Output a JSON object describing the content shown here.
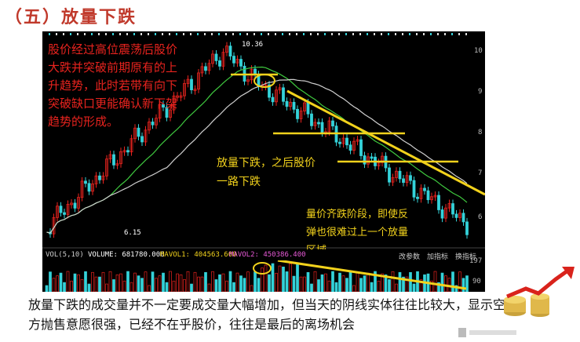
{
  "title": "（五）放量下跌",
  "chart": {
    "high_label": "10.36",
    "low_label": "6.15",
    "annotation_red": "股价经过高位震荡后股价大跌并突破前期原有的上升趋势，此时若带有向下突破缺口更能确认新下架趋势的形成。",
    "annotation_yellow_1": "放量下跌，之后股价一路下跌",
    "annotation_yellow_2": "量价齐跌阶段，即使反弹也很难过上一个放量区域",
    "price_axis": [
      "10",
      "9",
      "8",
      "7",
      "6"
    ],
    "volume_labels": {
      "vol": "VOL(5,10)",
      "volume": "VOLUME: 681780.000",
      "mavol1": "MAVOL1: 404563.600",
      "mavol2": "MAVOL2: 450386.400"
    },
    "volume_buttons": [
      "改参数",
      "加指标",
      "换指标"
    ],
    "volume_axis": [
      "197",
      "90"
    ]
  },
  "caption": "放量下跌的成交量并不一定要成交量大幅增加，但当天的阴线实体往往比较大，显示空方抛售意愿很强，已经不在乎股价，往往是最后的离场机会",
  "colors": {
    "title": "#c0392b",
    "bull": "#e8231e",
    "bear": "#34d2d9",
    "yellow": "#f2d21c",
    "ma_green": "#3fc93f",
    "ma_white": "#cfcfcf"
  }
}
